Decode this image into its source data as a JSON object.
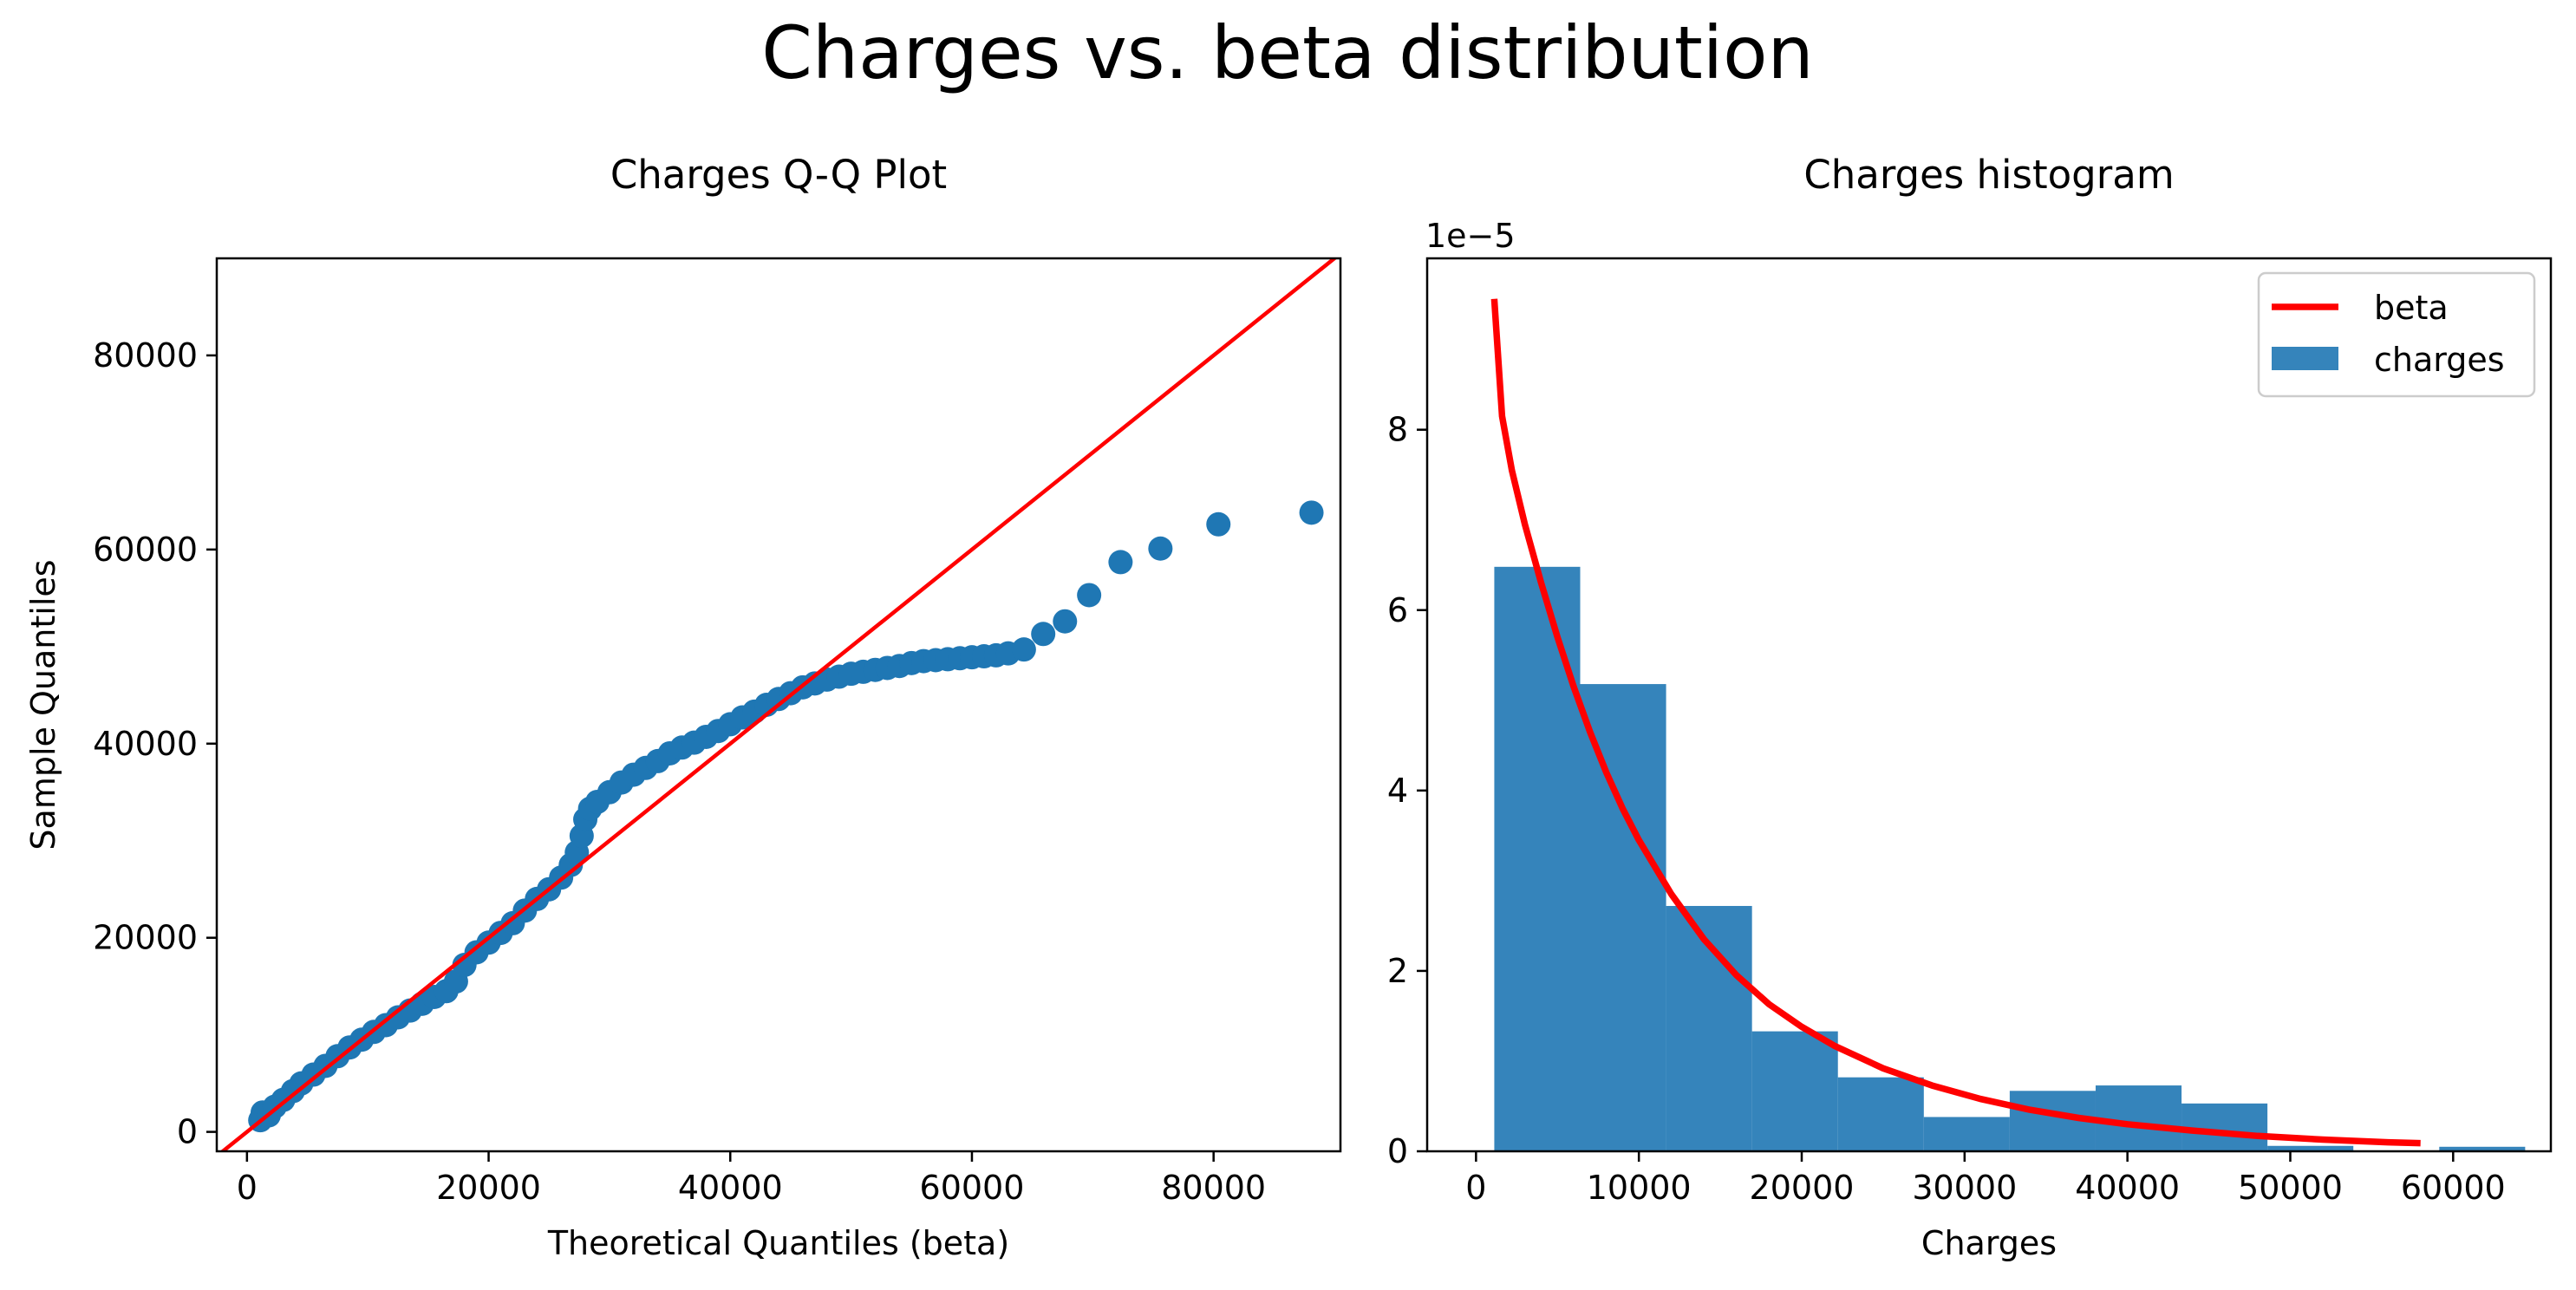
{
  "figure": {
    "suptitle": "Charges vs. beta distribution"
  },
  "colors": {
    "points": "#1f77b4",
    "bars": "#1f77b4",
    "line": "#ff0000"
  },
  "chart_data": [
    {
      "id": "qq",
      "type": "scatter",
      "title": "Charges Q-Q Plot",
      "xlabel": "Theoretical Quantiles (beta)",
      "ylabel": "Sample Quantiles",
      "xlim": [
        -2500,
        90500
      ],
      "ylim": [
        -2000,
        90000
      ],
      "xticks": [
        0,
        20000,
        40000,
        60000,
        80000
      ],
      "yticks": [
        0,
        20000,
        40000,
        60000,
        80000
      ],
      "reference_line": {
        "x": [
          -2500,
          90500
        ],
        "y": [
          -2500,
          90500
        ]
      },
      "points": [
        [
          1100,
          1200
        ],
        [
          1300,
          2000
        ],
        [
          1800,
          1700
        ],
        [
          2300,
          2600
        ],
        [
          3000,
          3300
        ],
        [
          3800,
          4200
        ],
        [
          4500,
          5000
        ],
        [
          5500,
          5900
        ],
        [
          6500,
          6800
        ],
        [
          7500,
          7800
        ],
        [
          8500,
          8700
        ],
        [
          9500,
          9500
        ],
        [
          10500,
          10300
        ],
        [
          11500,
          11000
        ],
        [
          12500,
          11800
        ],
        [
          13500,
          12500
        ],
        [
          14500,
          13200
        ],
        [
          15500,
          13900
        ],
        [
          16500,
          14500
        ],
        [
          17300,
          15500
        ],
        [
          18000,
          17200
        ],
        [
          19000,
          18500
        ],
        [
          20000,
          19500
        ],
        [
          21000,
          20500
        ],
        [
          22000,
          21500
        ],
        [
          23000,
          22800
        ],
        [
          24000,
          24000
        ],
        [
          25000,
          25000
        ],
        [
          26000,
          26200
        ],
        [
          26800,
          27500
        ],
        [
          27300,
          28800
        ],
        [
          27700,
          30500
        ],
        [
          28000,
          32200
        ],
        [
          28400,
          33300
        ],
        [
          29000,
          34000
        ],
        [
          30000,
          35000
        ],
        [
          31000,
          36000
        ],
        [
          32000,
          36800
        ],
        [
          33000,
          37500
        ],
        [
          34000,
          38200
        ],
        [
          35000,
          39000
        ],
        [
          36000,
          39600
        ],
        [
          37000,
          40100
        ],
        [
          38000,
          40700
        ],
        [
          39000,
          41300
        ],
        [
          40000,
          42000
        ],
        [
          41000,
          42700
        ],
        [
          42000,
          43300
        ],
        [
          43000,
          44000
        ],
        [
          44000,
          44600
        ],
        [
          45000,
          45200
        ],
        [
          46000,
          45800
        ],
        [
          47000,
          46200
        ],
        [
          48000,
          46600
        ],
        [
          49000,
          46900
        ],
        [
          50000,
          47200
        ],
        [
          51000,
          47400
        ],
        [
          52000,
          47600
        ],
        [
          53000,
          47800
        ],
        [
          54000,
          48000
        ],
        [
          55000,
          48300
        ],
        [
          56000,
          48500
        ],
        [
          57000,
          48600
        ],
        [
          58000,
          48700
        ],
        [
          59000,
          48800
        ],
        [
          60000,
          48900
        ],
        [
          61000,
          49000
        ],
        [
          62000,
          49100
        ],
        [
          63000,
          49300
        ],
        [
          64300,
          49700
        ],
        [
          65900,
          51300
        ],
        [
          67700,
          52600
        ],
        [
          69700,
          55300
        ],
        [
          72300,
          58700
        ],
        [
          75600,
          60100
        ],
        [
          80400,
          62600
        ],
        [
          88100,
          63800
        ]
      ]
    },
    {
      "id": "hist",
      "type": "bar",
      "title": "Charges histogram",
      "xlabel": "Charges",
      "ylabel": "",
      "scale_label": "1e−5",
      "xlim": [
        -3000,
        66000
      ],
      "ylim": [
        0,
        9.9
      ],
      "xticks": [
        0,
        10000,
        20000,
        30000,
        40000,
        50000,
        60000
      ],
      "yticks": [
        0,
        2,
        4,
        6,
        8
      ],
      "bin_edges": [
        1122,
        6397,
        11672,
        16947,
        22222,
        27497,
        32772,
        38047,
        43322,
        48597,
        53872,
        59147,
        64422
      ],
      "values": [
        6.48,
        5.18,
        2.72,
        1.33,
        0.82,
        0.38,
        0.67,
        0.73,
        0.53,
        0.06,
        0.0,
        0.05
      ],
      "curve": {
        "x": [
          1122,
          1600,
          2200,
          3000,
          4000,
          5000,
          6000,
          7000,
          8000,
          9000,
          10000,
          12000,
          14000,
          16000,
          18000,
          20000,
          22000,
          25000,
          28000,
          31000,
          34000,
          37000,
          40000,
          44000,
          48000,
          52000,
          56000,
          58000
        ],
        "y": [
          9.45,
          8.15,
          7.55,
          6.95,
          6.3,
          5.7,
          5.15,
          4.65,
          4.2,
          3.8,
          3.45,
          2.85,
          2.35,
          1.95,
          1.63,
          1.38,
          1.17,
          0.92,
          0.73,
          0.58,
          0.46,
          0.37,
          0.3,
          0.23,
          0.17,
          0.13,
          0.1,
          0.09
        ]
      },
      "legend": {
        "position": "upper right",
        "entries": [
          "beta",
          "charges"
        ]
      }
    }
  ]
}
